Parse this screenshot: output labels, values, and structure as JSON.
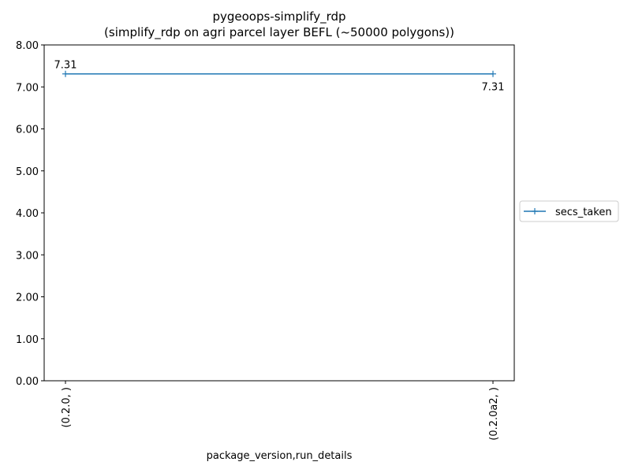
{
  "chart_data": {
    "type": "line",
    "title": "pygeoops-simplify_rdp",
    "subtitle": "(simplify_rdp on agri parcel layer BEFL (~50000 polygons))",
    "xlabel": "package_version,run_details",
    "ylabel": "",
    "categories": [
      "(0.2.0, )",
      "(0.2.0a2, )"
    ],
    "ylim": [
      0,
      8
    ],
    "yticks": [
      "0.00",
      "1.00",
      "2.00",
      "3.00",
      "4.00",
      "5.00",
      "6.00",
      "7.00",
      "8.00"
    ],
    "series": [
      {
        "name": "secs_taken",
        "values": [
          7.31,
          7.31
        ],
        "labels": [
          "7.31",
          "7.31"
        ],
        "color": "#1f77b4",
        "marker": "plus"
      }
    ],
    "legend": "right-outside",
    "grid": false
  }
}
